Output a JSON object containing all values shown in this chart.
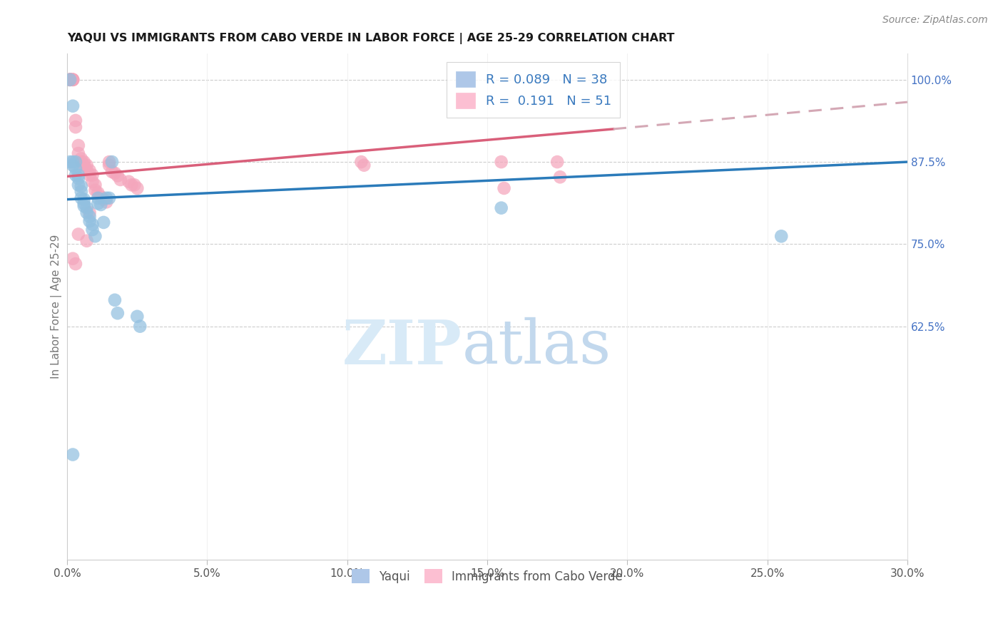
{
  "title": "YAQUI VS IMMIGRANTS FROM CABO VERDE IN LABOR FORCE | AGE 25-29 CORRELATION CHART",
  "source": "Source: ZipAtlas.com",
  "ylabel": "In Labor Force | Age 25-29",
  "xlim": [
    0.0,
    0.3
  ],
  "ylim_low": 0.27,
  "ylim_high": 1.04,
  "xtick_labels": [
    "0.0%",
    "5.0%",
    "10.0%",
    "15.0%",
    "20.0%",
    "25.0%",
    "30.0%"
  ],
  "xtick_vals": [
    0.0,
    0.05,
    0.1,
    0.15,
    0.2,
    0.25,
    0.3
  ],
  "ytick_labels": [
    "100.0%",
    "87.5%",
    "75.0%",
    "62.5%"
  ],
  "ytick_vals": [
    1.0,
    0.875,
    0.75,
    0.625
  ],
  "legend_labels_bottom": [
    "Yaqui",
    "Immigrants from Cabo Verde"
  ],
  "blue_R": "0.089",
  "blue_N": "38",
  "pink_R": "0.191",
  "pink_N": "51",
  "blue_dot_color": "#92c0e0",
  "pink_dot_color": "#f4a6bc",
  "blue_legend_color": "#aec7e8",
  "pink_legend_color": "#fcbfd2",
  "trend_blue_color": "#2b7bba",
  "trend_pink_color": "#d95f7a",
  "trend_pink_dash_color": "#d4a8b5",
  "blue_trend": [
    0.0,
    0.3,
    0.818,
    0.875
  ],
  "pink_trend_solid": [
    0.0,
    0.195,
    0.853,
    0.925
  ],
  "pink_trend_dash": [
    0.195,
    0.3,
    0.925,
    0.966
  ],
  "yaqui_x": [
    0.001,
    0.001,
    0.002,
    0.002,
    0.002,
    0.003,
    0.003,
    0.003,
    0.004,
    0.004,
    0.004,
    0.005,
    0.005,
    0.005,
    0.006,
    0.006,
    0.006,
    0.007,
    0.007,
    0.008,
    0.008,
    0.009,
    0.009,
    0.01,
    0.011,
    0.011,
    0.012,
    0.013,
    0.014,
    0.015,
    0.016,
    0.017,
    0.018,
    0.025,
    0.026,
    0.155,
    0.255,
    0.002
  ],
  "yaqui_y": [
    0.875,
    1.0,
    0.96,
    0.875,
    0.87,
    0.875,
    0.865,
    0.855,
    0.855,
    0.85,
    0.84,
    0.838,
    0.83,
    0.82,
    0.818,
    0.812,
    0.808,
    0.805,
    0.798,
    0.792,
    0.785,
    0.78,
    0.772,
    0.762,
    0.82,
    0.812,
    0.81,
    0.783,
    0.82,
    0.82,
    0.875,
    0.665,
    0.645,
    0.64,
    0.625,
    0.805,
    0.762,
    0.43
  ],
  "cabo_x": [
    0.001,
    0.001,
    0.001,
    0.001,
    0.001,
    0.001,
    0.002,
    0.002,
    0.002,
    0.002,
    0.003,
    0.003,
    0.004,
    0.004,
    0.005,
    0.005,
    0.006,
    0.006,
    0.007,
    0.007,
    0.008,
    0.008,
    0.009,
    0.009,
    0.01,
    0.01,
    0.011,
    0.012,
    0.013,
    0.014,
    0.015,
    0.015,
    0.016,
    0.017,
    0.018,
    0.019,
    0.022,
    0.023,
    0.024,
    0.025,
    0.105,
    0.106,
    0.155,
    0.156,
    0.175,
    0.176,
    0.002,
    0.003,
    0.004,
    0.007,
    0.008
  ],
  "cabo_y": [
    1.0,
    1.0,
    1.0,
    1.0,
    1.0,
    1.0,
    1.0,
    1.0,
    1.0,
    1.0,
    0.938,
    0.928,
    0.9,
    0.888,
    0.88,
    0.875,
    0.875,
    0.87,
    0.87,
    0.862,
    0.862,
    0.855,
    0.855,
    0.845,
    0.84,
    0.832,
    0.828,
    0.822,
    0.818,
    0.814,
    0.875,
    0.87,
    0.86,
    0.858,
    0.854,
    0.848,
    0.845,
    0.84,
    0.84,
    0.835,
    0.875,
    0.87,
    0.875,
    0.835,
    0.875,
    0.852,
    0.728,
    0.72,
    0.765,
    0.755,
    0.798
  ]
}
